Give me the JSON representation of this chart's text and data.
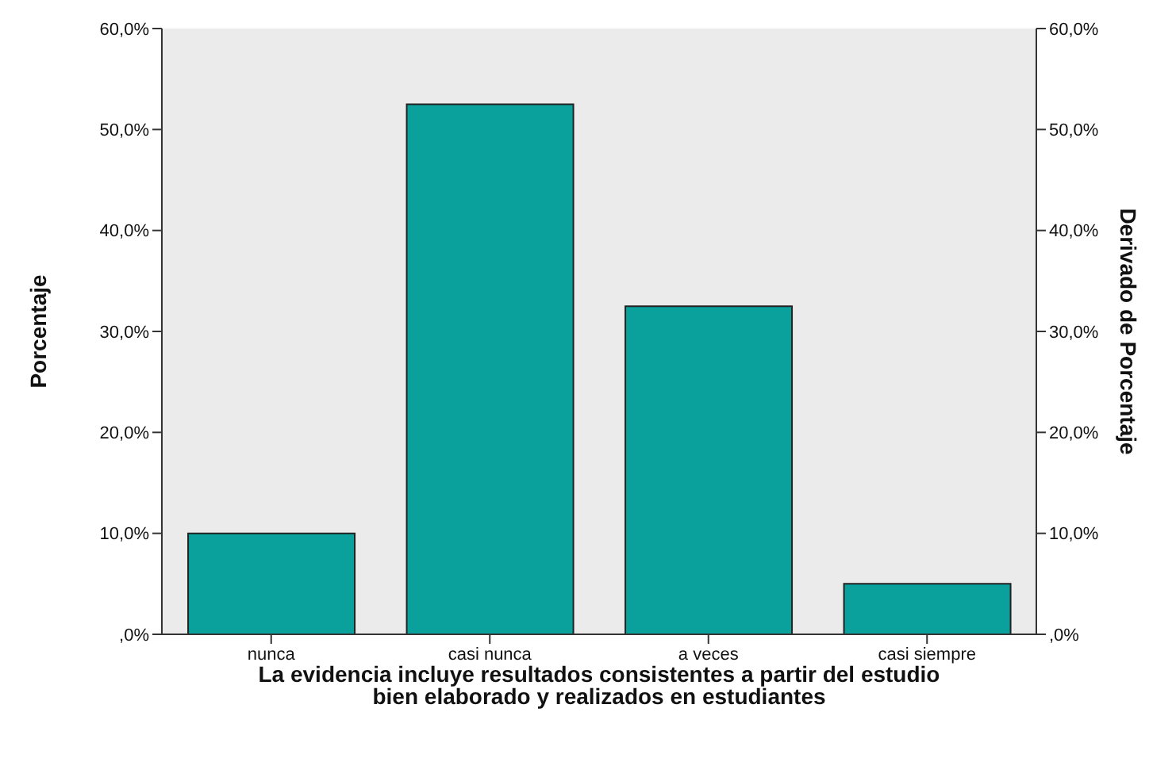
{
  "chart_data": {
    "type": "bar",
    "categories": [
      "nunca",
      "casi nunca",
      "a veces",
      "casi siempre"
    ],
    "values": [
      10.0,
      52.5,
      32.5,
      5.0
    ],
    "color": "#0aa19c",
    "xlabel": "La evidencia incluye resultados consistentes a partir del estudio\nbien elaborado y realizados en estudiantes",
    "ylabel": "Porcentaje",
    "y2label": "Derivado de Porcentaje",
    "ylim": [
      0,
      60
    ],
    "yticks": [
      {
        "value": 0,
        "label": ",0%"
      },
      {
        "value": 10,
        "label": "10,0%"
      },
      {
        "value": 20,
        "label": "20,0%"
      },
      {
        "value": 30,
        "label": "30,0%"
      },
      {
        "value": 40,
        "label": "40,0%"
      },
      {
        "value": 50,
        "label": "50,0%"
      },
      {
        "value": 60,
        "label": "60,0%"
      }
    ],
    "y2lim": [
      0,
      60
    ],
    "y2ticks": [
      {
        "value": 0,
        "label": ",0%"
      },
      {
        "value": 10,
        "label": "10,0%"
      },
      {
        "value": 20,
        "label": "20,0%"
      },
      {
        "value": 30,
        "label": "30,0%"
      },
      {
        "value": 40,
        "label": "40,0%"
      },
      {
        "value": 50,
        "label": "50,0%"
      },
      {
        "value": 60,
        "label": "60,0%"
      }
    ]
  }
}
